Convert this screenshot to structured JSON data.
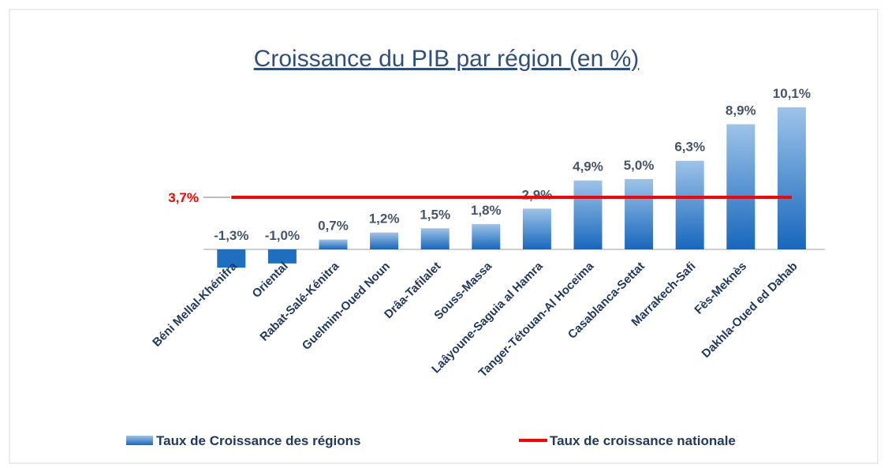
{
  "chart_data": {
    "type": "bar",
    "title": "Croissance du PIB par région (en %)",
    "categories": [
      "Béni Mellal-Khénifra",
      "Oriental",
      "Rabat-Salé-Kénitra",
      "Guelmim-Oued Noun",
      "Drâa-Tafilalet",
      "Souss-Massa",
      "Laâyoune-Saguia al Hamra",
      "Tanger-Tétouan-Al Hoceima",
      "Casablanca-Settat",
      "Marrakech-Safi",
      "Fès-Meknès",
      "Dakhla-Oued ed Dahab"
    ],
    "series": [
      {
        "name": "Taux de Croissance des régions",
        "color": "#1f6fc0",
        "values": [
          -1.3,
          -1.0,
          0.7,
          1.2,
          1.5,
          1.8,
          2.9,
          4.9,
          5.0,
          6.3,
          8.9,
          10.1
        ],
        "value_labels": [
          "-1,3%",
          "-1,0%",
          "0,7%",
          "1,2%",
          "1,5%",
          "1,8%",
          "2,9%",
          "4,9%",
          "5,0%",
          "6,3%",
          "8,9%",
          "10,1%"
        ]
      }
    ],
    "reference_line": {
      "name": "Taux de croissance nationale",
      "value": 3.7,
      "label": "3,7%",
      "color": "#ff0000"
    }
  }
}
